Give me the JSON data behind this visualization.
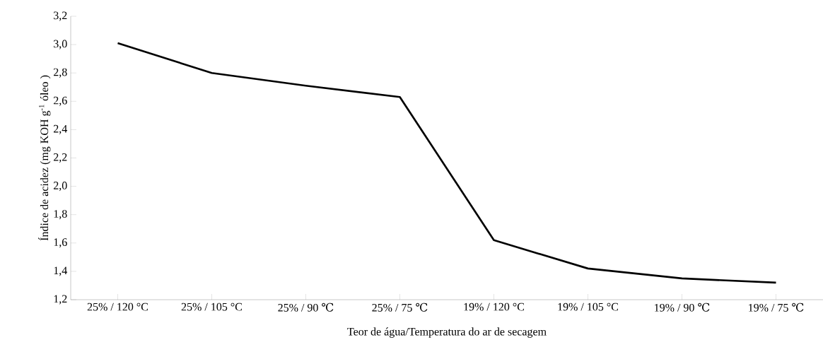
{
  "chart_data": {
    "type": "line",
    "xlabel": "Teor de água/Temperatura do ar de secagem",
    "ylabel": "Índice de acidez (mg KOH g$^{-1}$ óleo )",
    "categories": [
      "25% / 120 °C",
      "25% / 105 °C",
      "25% / 90 ℃",
      "25% / 75 ℃",
      "19% / 120 °C",
      "19% / 105 °C",
      "19% / 90 ℃",
      "19% / 75 ℃"
    ],
    "series": [
      {
        "color": "#000000",
        "values": [
          3.01,
          2.8,
          2.71,
          2.63,
          1.62,
          1.42,
          1.35,
          1.32
        ]
      }
    ],
    "ylim": [
      1.2,
      3.2
    ],
    "yticks": [
      {
        "value": 1.2,
        "label": "1,2"
      },
      {
        "value": 1.4,
        "label": "1,4"
      },
      {
        "value": 1.6,
        "label": "1,6"
      },
      {
        "value": 1.8,
        "label": "1,8"
      },
      {
        "value": 2.0,
        "label": "2,0"
      },
      {
        "value": 2.2,
        "label": "2,2"
      },
      {
        "value": 2.4,
        "label": "2,4"
      },
      {
        "value": 2.6,
        "label": "2,6"
      },
      {
        "value": 2.8,
        "label": "2,8"
      },
      {
        "value": 3.0,
        "label": "3,0"
      },
      {
        "value": 3.2,
        "label": "3,2"
      }
    ],
    "marker": "none",
    "line_style": "solid"
  }
}
